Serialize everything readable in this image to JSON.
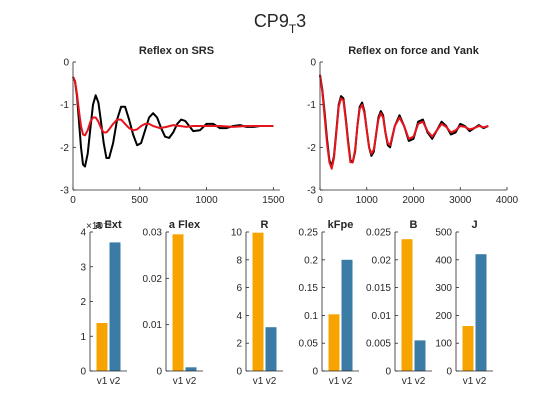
{
  "figure": {
    "title_main": "CP9",
    "title_sub": "T",
    "title_suffix": "3"
  },
  "chart_data": [
    {
      "type": "line",
      "title": "Reflex on SRS",
      "xlim": [
        0,
        1550
      ],
      "ylim": [
        -3,
        0
      ],
      "xticks": [
        0,
        500,
        1000,
        1500
      ],
      "yticks": [
        -3,
        -2,
        -1,
        0
      ],
      "grid": false,
      "series": [
        {
          "color": "#000000",
          "x": [
            0,
            15,
            30,
            45,
            60,
            75,
            90,
            110,
            130,
            150,
            170,
            190,
            210,
            230,
            250,
            270,
            300,
            330,
            360,
            390,
            420,
            450,
            480,
            510,
            540,
            570,
            600,
            630,
            660,
            690,
            720,
            750,
            780,
            810,
            840,
            870,
            900,
            950,
            1000,
            1050,
            1100,
            1150,
            1200,
            1250,
            1300,
            1350,
            1400,
            1450,
            1500
          ],
          "y": [
            -0.35,
            -0.45,
            -0.8,
            -1.4,
            -2.0,
            -2.4,
            -2.45,
            -2.15,
            -1.55,
            -1.0,
            -0.78,
            -0.95,
            -1.4,
            -1.9,
            -2.25,
            -2.25,
            -1.9,
            -1.35,
            -1.05,
            -1.05,
            -1.35,
            -1.7,
            -1.95,
            -1.9,
            -1.6,
            -1.3,
            -1.2,
            -1.3,
            -1.55,
            -1.75,
            -1.78,
            -1.65,
            -1.45,
            -1.35,
            -1.38,
            -1.5,
            -1.62,
            -1.6,
            -1.45,
            -1.45,
            -1.55,
            -1.55,
            -1.5,
            -1.48,
            -1.52,
            -1.52,
            -1.5,
            -1.5,
            -1.5
          ]
        },
        {
          "color": "#e8141c",
          "x": [
            0,
            15,
            30,
            45,
            60,
            75,
            90,
            110,
            130,
            150,
            170,
            190,
            210,
            230,
            250,
            270,
            300,
            330,
            360,
            390,
            420,
            450,
            480,
            510,
            540,
            570,
            600,
            650,
            700,
            750,
            800,
            850,
            900,
            1000,
            1100,
            1200,
            1300,
            1400,
            1500
          ],
          "y": [
            -0.35,
            -0.45,
            -0.75,
            -1.15,
            -1.5,
            -1.7,
            -1.72,
            -1.6,
            -1.4,
            -1.3,
            -1.3,
            -1.4,
            -1.55,
            -1.65,
            -1.65,
            -1.58,
            -1.45,
            -1.35,
            -1.35,
            -1.45,
            -1.55,
            -1.6,
            -1.58,
            -1.5,
            -1.45,
            -1.45,
            -1.5,
            -1.55,
            -1.52,
            -1.48,
            -1.5,
            -1.52,
            -1.5,
            -1.5,
            -1.5,
            -1.52,
            -1.5,
            -1.5,
            -1.5
          ]
        }
      ]
    },
    {
      "type": "line",
      "title": "Reflex on force and Yank",
      "xlim": [
        0,
        4000
      ],
      "ylim": [
        -3,
        0
      ],
      "xticks": [
        0,
        1000,
        2000,
        3000,
        4000
      ],
      "yticks": [
        -3,
        -2,
        -1,
        0
      ],
      "grid": false,
      "series": [
        {
          "color": "#000000",
          "x": [
            0,
            50,
            100,
            150,
            200,
            250,
            300,
            350,
            400,
            450,
            500,
            550,
            600,
            650,
            700,
            750,
            800,
            850,
            900,
            950,
            1000,
            1050,
            1100,
            1150,
            1200,
            1250,
            1300,
            1350,
            1400,
            1450,
            1500,
            1600,
            1700,
            1800,
            1900,
            2000,
            2100,
            2200,
            2300,
            2400,
            2500,
            2600,
            2700,
            2800,
            2900,
            3000,
            3100,
            3200,
            3300,
            3400,
            3500,
            3600
          ],
          "y": [
            -0.3,
            -0.65,
            -1.2,
            -1.8,
            -2.3,
            -2.45,
            -2.2,
            -1.6,
            -1.0,
            -0.8,
            -0.85,
            -1.3,
            -1.85,
            -2.3,
            -2.35,
            -2.1,
            -1.5,
            -1.05,
            -0.95,
            -1.15,
            -1.6,
            -2.0,
            -2.2,
            -2.1,
            -1.7,
            -1.3,
            -1.15,
            -1.25,
            -1.65,
            -1.95,
            -2.0,
            -1.5,
            -1.25,
            -1.5,
            -1.85,
            -1.8,
            -1.4,
            -1.35,
            -1.65,
            -1.8,
            -1.6,
            -1.4,
            -1.5,
            -1.7,
            -1.65,
            -1.45,
            -1.5,
            -1.62,
            -1.55,
            -1.48,
            -1.55,
            -1.5
          ]
        },
        {
          "color": "#e8141c",
          "x": [
            0,
            50,
            100,
            150,
            200,
            250,
            300,
            350,
            400,
            450,
            500,
            550,
            600,
            650,
            700,
            750,
            800,
            850,
            900,
            950,
            1000,
            1050,
            1100,
            1150,
            1200,
            1250,
            1300,
            1350,
            1400,
            1450,
            1500,
            1600,
            1700,
            1800,
            1900,
            2000,
            2100,
            2200,
            2300,
            2400,
            2500,
            2600,
            2700,
            2800,
            2900,
            3000,
            3100,
            3200,
            3300,
            3400,
            3500,
            3600
          ],
          "y": [
            -0.3,
            -0.7,
            -1.3,
            -1.9,
            -2.35,
            -2.5,
            -2.25,
            -1.65,
            -1.05,
            -0.85,
            -0.9,
            -1.35,
            -1.9,
            -2.35,
            -2.35,
            -2.05,
            -1.5,
            -1.1,
            -1.0,
            -1.2,
            -1.6,
            -2.0,
            -2.15,
            -2.05,
            -1.7,
            -1.35,
            -1.2,
            -1.3,
            -1.65,
            -1.9,
            -1.95,
            -1.5,
            -1.3,
            -1.5,
            -1.8,
            -1.75,
            -1.45,
            -1.4,
            -1.62,
            -1.75,
            -1.6,
            -1.45,
            -1.52,
            -1.65,
            -1.6,
            -1.5,
            -1.52,
            -1.58,
            -1.55,
            -1.5,
            -1.53,
            -1.5
          ]
        }
      ]
    },
    {
      "type": "bar",
      "title": "a Ext",
      "categories": [
        "v1",
        "v2"
      ],
      "values": [
        0.00138,
        0.0037
      ],
      "colors": [
        "#f7a400",
        "#3a7ca5"
      ],
      "ylim": [
        0,
        0.004
      ],
      "yticks": [
        0,
        0.001,
        0.002,
        0.003,
        0.004
      ],
      "yticklabels": [
        "0",
        "1",
        "2",
        "3",
        "4"
      ],
      "exponent_label": "×10⁻³"
    },
    {
      "type": "bar",
      "title": "a Flex",
      "categories": [
        "v1",
        "v2"
      ],
      "values": [
        0.0295,
        0.0008
      ],
      "colors": [
        "#f7a400",
        "#3a7ca5"
      ],
      "ylim": [
        0,
        0.03
      ],
      "yticks": [
        0,
        0.01,
        0.02,
        0.03
      ],
      "yticklabels": [
        "0",
        "0.01",
        "0.02",
        "0.03"
      ]
    },
    {
      "type": "bar",
      "title": "R",
      "categories": [
        "v1",
        "v2"
      ],
      "values": [
        9.95,
        3.15
      ],
      "colors": [
        "#f7a400",
        "#3a7ca5"
      ],
      "ylim": [
        0,
        10
      ],
      "yticks": [
        0,
        2,
        4,
        6,
        8,
        10
      ],
      "yticklabels": [
        "0",
        "2",
        "4",
        "6",
        "8",
        "10"
      ]
    },
    {
      "type": "bar",
      "title": "kFpe",
      "categories": [
        "v1",
        "v2"
      ],
      "values": [
        0.102,
        0.2
      ],
      "colors": [
        "#f7a400",
        "#3a7ca5"
      ],
      "ylim": [
        0,
        0.25
      ],
      "yticks": [
        0,
        0.05,
        0.1,
        0.15,
        0.2,
        0.25
      ],
      "yticklabels": [
        "0",
        "0.05",
        "0.1",
        "0.15",
        "0.2",
        "0.25"
      ]
    },
    {
      "type": "bar",
      "title": "B",
      "categories": [
        "v1",
        "v2"
      ],
      "values": [
        0.0237,
        0.0055
      ],
      "colors": [
        "#f7a400",
        "#3a7ca5"
      ],
      "ylim": [
        0,
        0.025
      ],
      "yticks": [
        0,
        0.005,
        0.01,
        0.015,
        0.02,
        0.025
      ],
      "yticklabels": [
        "0",
        "0.005",
        "0.01",
        "0.015",
        "0.02",
        "0.025"
      ]
    },
    {
      "type": "bar",
      "title": "J",
      "categories": [
        "v1",
        "v2"
      ],
      "values": [
        162,
        420
      ],
      "colors": [
        "#f7a400",
        "#3a7ca5"
      ],
      "ylim": [
        0,
        500
      ],
      "yticks": [
        0,
        100,
        200,
        300,
        400,
        500
      ],
      "yticklabels": [
        "0",
        "100",
        "200",
        "300",
        "400",
        "500"
      ]
    }
  ]
}
